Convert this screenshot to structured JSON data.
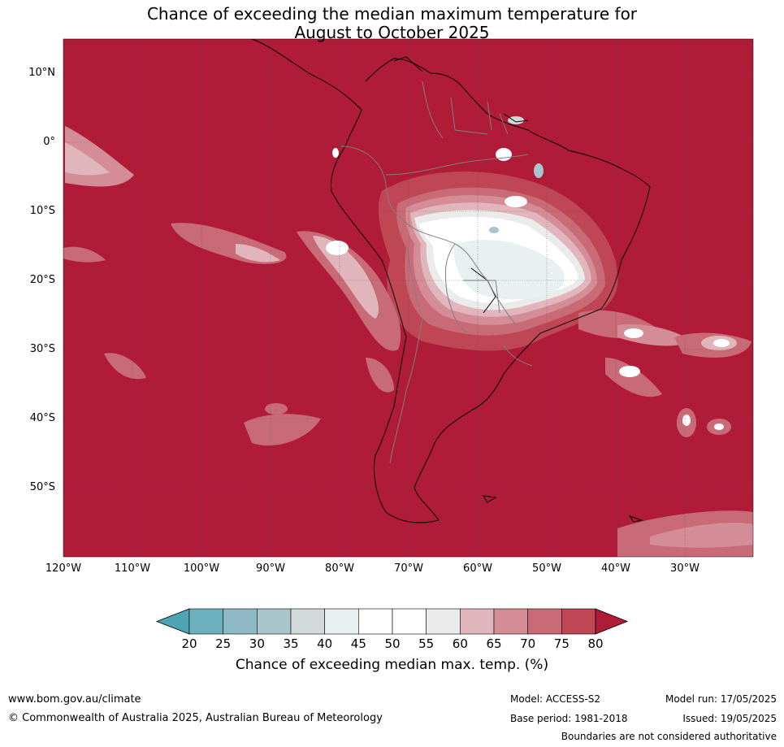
{
  "title_line1": "Chance of exceeding the median maximum temperature for",
  "title_line2": "August to October 2025",
  "lat_labels": [
    "10°N",
    "0°",
    "10°S",
    "20°S",
    "30°S",
    "40°S",
    "50°S"
  ],
  "lon_labels": [
    "120°W",
    "110°W",
    "100°W",
    "90°W",
    "80°W",
    "70°W",
    "60°W",
    "50°W",
    "40°W",
    "30°W"
  ],
  "map_extent": {
    "lon": [
      -120,
      -20
    ],
    "lat": [
      -60,
      15
    ]
  },
  "colorbar": {
    "ticks": [
      "20",
      "25",
      "30",
      "35",
      "40",
      "45",
      "50",
      "55",
      "60",
      "65",
      "70",
      "75",
      "80"
    ],
    "colors": [
      "#4ea4b3",
      "#6cafbd",
      "#8cb9c4",
      "#a9c6cc",
      "#d2d9db",
      "#e9f0f2",
      "#ffffff",
      "#ffffff",
      "#ebebeb",
      "#e0b6bc",
      "#d48c96",
      "#c96b76",
      "#bf4654",
      "#b01c38"
    ],
    "label": "Chance of exceeding median max. temp. (%)"
  },
  "footer": {
    "url": "www.bom.gov.au/climate",
    "copyright": "© Commonwealth of Australia 2025, Australian Bureau of Meteorology",
    "model": "Model: ACCESS-S2",
    "base_period": "Base period: 1981-2018",
    "model_run": "Model run: 17/05/2025",
    "issued": "Issued: 19/05/2025",
    "boundaries": "Boundaries are not considered authoritative"
  }
}
